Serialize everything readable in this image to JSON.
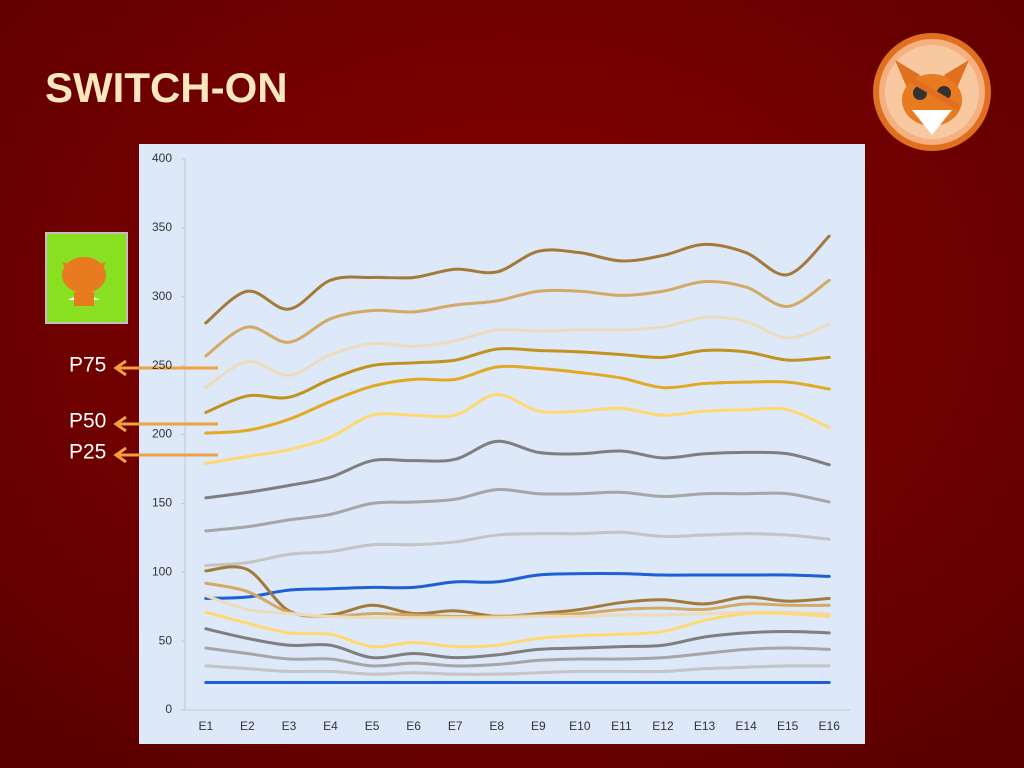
{
  "title": "SWITCH-ON",
  "annotations": [
    "P75",
    "P50",
    "P25"
  ],
  "chart_data": {
    "type": "line",
    "categories": [
      "E1",
      "E2",
      "E3",
      "E4",
      "E5",
      "E6",
      "E7",
      "E8",
      "E9",
      "E10",
      "E11",
      "E12",
      "E13",
      "E14",
      "E15",
      "E16"
    ],
    "ylim": [
      0,
      400
    ],
    "yticks": [
      0,
      50,
      100,
      150,
      200,
      250,
      300,
      350,
      400
    ],
    "grid": false,
    "series": [
      {
        "color": "#a47a3a",
        "values": [
          281,
          304,
          291,
          312,
          314,
          314,
          320,
          318,
          333,
          332,
          326,
          330,
          338,
          332,
          316,
          344
        ]
      },
      {
        "color": "#d2aa66",
        "values": [
          257,
          278,
          267,
          284,
          290,
          289,
          294,
          297,
          304,
          304,
          301,
          304,
          311,
          307,
          293,
          312
        ]
      },
      {
        "color": "#ecdcbc",
        "values": [
          234,
          253,
          243,
          258,
          266,
          264,
          268,
          276,
          275,
          276,
          276,
          278,
          285,
          282,
          270,
          280
        ]
      },
      {
        "color": "#c0921e",
        "values": [
          216,
          228,
          227,
          240,
          250,
          252,
          254,
          262,
          261,
          260,
          258,
          256,
          261,
          260,
          254,
          256
        ]
      },
      {
        "color": "#e2aa22",
        "values": [
          201,
          203,
          211,
          224,
          235,
          240,
          240,
          249,
          248,
          245,
          241,
          234,
          237,
          238,
          238,
          233
        ]
      },
      {
        "color": "#ffd872",
        "values": [
          179,
          184,
          189,
          198,
          214,
          214,
          214,
          229,
          217,
          217,
          219,
          214,
          217,
          218,
          218,
          205
        ]
      },
      {
        "color": "#7f7f7f",
        "values": [
          154,
          158,
          163,
          169,
          181,
          181,
          182,
          195,
          187,
          186,
          188,
          183,
          186,
          187,
          186,
          178
        ]
      },
      {
        "color": "#a6a6a6",
        "values": [
          130,
          133,
          138,
          142,
          150,
          151,
          153,
          160,
          157,
          157,
          158,
          155,
          157,
          157,
          157,
          151
        ]
      },
      {
        "color": "#c4c4c4",
        "values": [
          105,
          107,
          113,
          115,
          120,
          120,
          122,
          127,
          128,
          128,
          129,
          126,
          127,
          128,
          127,
          124
        ]
      },
      {
        "color": "#1f5fd6",
        "values": [
          81,
          82,
          87,
          88,
          89,
          89,
          93,
          93,
          98,
          99,
          99,
          98,
          98,
          98,
          98,
          97
        ]
      },
      {
        "color": "#a47a3a",
        "values": [
          101,
          102,
          72,
          69,
          76,
          70,
          72,
          68,
          70,
          73,
          78,
          80,
          77,
          82,
          79,
          81
        ]
      },
      {
        "color": "#d2aa66",
        "values": [
          92,
          86,
          71,
          68,
          70,
          69,
          68,
          68,
          69,
          70,
          73,
          74,
          73,
          77,
          76,
          76
        ]
      },
      {
        "color": "#ecdcbc",
        "values": [
          83,
          73,
          70,
          68,
          67,
          67,
          67,
          67,
          68,
          68,
          69,
          69,
          70,
          71,
          71,
          70
        ]
      },
      {
        "color": "#ffd872",
        "values": [
          71,
          63,
          56,
          55,
          46,
          49,
          46,
          47,
          52,
          54,
          55,
          57,
          65,
          70,
          70,
          68
        ]
      },
      {
        "color": "#7f7f7f",
        "values": [
          59,
          52,
          47,
          47,
          38,
          41,
          38,
          40,
          44,
          45,
          46,
          47,
          53,
          56,
          57,
          56
        ]
      },
      {
        "color": "#a6a6a6",
        "values": [
          45,
          41,
          37,
          37,
          32,
          34,
          32,
          33,
          36,
          37,
          37,
          38,
          41,
          44,
          45,
          44
        ]
      },
      {
        "color": "#c4c4c4",
        "values": [
          32,
          30,
          28,
          28,
          26,
          27,
          26,
          26,
          27,
          28,
          28,
          28,
          30,
          31,
          32,
          32
        ]
      },
      {
        "color": "#1f5fd6",
        "values": [
          20,
          20,
          20,
          20,
          20,
          20,
          20,
          20,
          20,
          20,
          20,
          20,
          20,
          20,
          20,
          20
        ]
      }
    ]
  }
}
